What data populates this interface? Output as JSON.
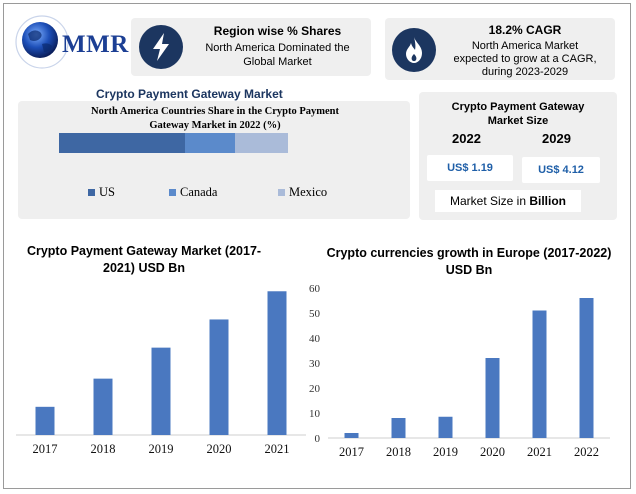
{
  "brand": {
    "logo_text": "MMR"
  },
  "cards": [
    {
      "title": "Region wise % Shares",
      "text_lines": [
        "North America Dominated the",
        "Global Market"
      ],
      "icon": "lightning-bolt-icon"
    },
    {
      "title": "18.2% CAGR",
      "text_lines": [
        "North America Market",
        "expected to grow at a CAGR,",
        "during 2023-2029"
      ],
      "icon": "flame-icon"
    }
  ],
  "market": {
    "title": "Crypto Payment Gateway Market",
    "share_title_lines": [
      "North America Countries Share in the Crypto Payment",
      "Gateway Market in 2022 (%)"
    ],
    "shares": [
      {
        "name": "US",
        "value": 55,
        "color": "#3e67a3"
      },
      {
        "name": "Canada",
        "value": 22,
        "color": "#5b8acb"
      },
      {
        "name": "Mexico",
        "value": 23,
        "color": "#aabbd9"
      }
    ]
  },
  "market_size": {
    "title_lines": [
      "Crypto Payment Gateway",
      "Market Size"
    ],
    "year1": "2022",
    "year2": "2029",
    "value1": "US$ 1.19",
    "value2": "US$ 4.12",
    "note_prefix": "Market Size in ",
    "note_bold": "Billion"
  },
  "accent_color": "#4a78c0",
  "chart_data": [
    {
      "type": "bar",
      "title": "Crypto Payment Gateway Market (2017-2021) USD Bn",
      "title_lines": [
        "Crypto Payment Gateway Market (2017-",
        "2021) USD Bn"
      ],
      "categories": [
        "2017",
        "2018",
        "2019",
        "2020",
        "2021"
      ],
      "values": [
        1,
        2,
        3.1,
        4.1,
        5.1
      ],
      "ylim": [
        0,
        5.5
      ]
    },
    {
      "type": "bar",
      "title": "Crypto currencies growth in Europe (2017-2022) USD Bn",
      "title_lines": [
        "Crypto currencies growth in Europe (2017-2022)",
        "USD Bn"
      ],
      "categories": [
        "2017",
        "2018",
        "2019",
        "2020",
        "2021",
        "2022"
      ],
      "values": [
        2,
        8,
        8.5,
        32,
        51,
        56
      ],
      "yticks": [
        "0",
        "10",
        "20",
        "30",
        "40",
        "50",
        "60"
      ],
      "ylim": [
        0,
        60
      ]
    }
  ]
}
